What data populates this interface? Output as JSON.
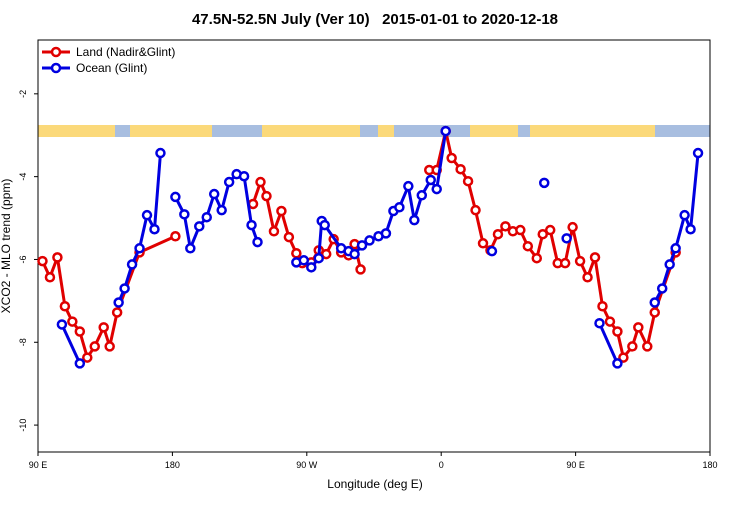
{
  "chart_data": {
    "type": "line",
    "title": "47.5N-52.5N July (Ver 10)   2015-01-01 to 2020-12-18",
    "x_label": "Longitude (deg E)",
    "y_label": "XCO2 - MLO trend (ppm)",
    "xlim": [
      90,
      540
    ],
    "ylim": [
      -10.65,
      -0.7
    ],
    "xticks": [
      {
        "value": 90,
        "label": "90 E"
      },
      180,
      {
        "value": 270,
        "label": "90 W"
      },
      {
        "value": 360,
        "label": "0"
      },
      {
        "value": 450,
        "label": "90 E"
      },
      {
        "value": 540,
        "label": "180"
      }
    ],
    "yticks": [
      -2,
      -4,
      -6,
      -8,
      -10
    ],
    "legend": "topleft",
    "series": [
      {
        "name": "Land (Nadir&Glint)",
        "color": "#e00000",
        "x": [
          93,
          98,
          103,
          108,
          113,
          118,
          123,
          128,
          134,
          138,
          143,
          158,
          182,
          null,
          234,
          239,
          243,
          248,
          253,
          258,
          263,
          267,
          273,
          278,
          283,
          288,
          293,
          298,
          302,
          306,
          null,
          352,
          357,
          363,
          367,
          373,
          378,
          383,
          388,
          393,
          398,
          403,
          408,
          413,
          418,
          424,
          428,
          433,
          438,
          443,
          448,
          453,
          458,
          463,
          468,
          473,
          478,
          482,
          488,
          492,
          498,
          503,
          517
        ],
        "values": [
          -6.04,
          -6.43,
          -5.95,
          -7.13,
          -7.5,
          -7.74,
          -8.37,
          -8.1,
          -7.64,
          -8.1,
          -7.28,
          -5.83,
          -5.44,
          null,
          -4.66,
          -4.13,
          -4.47,
          -5.32,
          -4.83,
          -5.46,
          -5.85,
          -6.09,
          -6.07,
          -5.78,
          -5.87,
          -5.51,
          -5.83,
          -5.9,
          -5.63,
          -6.24,
          null,
          -3.84,
          -3.84,
          -2.9,
          -3.55,
          -3.82,
          -4.11,
          -4.81,
          -5.61,
          -5.78,
          -5.39,
          -5.2,
          -5.32,
          -5.29,
          -5.68,
          -5.97,
          -5.39,
          -5.29,
          -6.09,
          -6.09,
          -5.22,
          -6.04,
          -6.43,
          -5.95,
          -7.13,
          -7.5,
          -7.74,
          -8.37,
          -8.1,
          -7.64,
          -8.1,
          -7.28,
          -5.83
        ]
      },
      {
        "name": "Ocean (Glint)",
        "color": "#0000e0",
        "x": [
          106,
          118,
          null,
          144,
          148,
          153,
          158,
          163,
          168,
          172,
          null,
          182,
          188,
          192,
          198,
          203,
          208,
          213,
          218,
          223,
          228,
          233,
          237,
          null,
          263,
          268,
          273,
          278,
          280,
          282,
          293,
          298,
          302,
          307,
          312,
          318,
          323,
          328,
          332,
          338,
          342,
          347,
          353,
          357,
          363,
          null,
          394,
          null,
          429,
          null,
          444,
          null,
          466,
          478,
          null,
          503,
          508,
          513,
          517,
          523,
          527,
          532
        ],
        "values": [
          -7.57,
          -8.51,
          null,
          -7.04,
          -6.7,
          -6.12,
          -5.73,
          -4.93,
          -5.27,
          -3.43,
          null,
          -4.49,
          -4.91,
          -5.73,
          -5.2,
          -4.98,
          -4.42,
          -4.81,
          -4.13,
          -3.94,
          -3.99,
          -5.17,
          -5.58,
          null,
          -6.07,
          -6.02,
          -6.19,
          -5.97,
          -5.07,
          -5.17,
          -5.73,
          -5.8,
          -5.87,
          -5.66,
          -5.54,
          -5.44,
          -5.37,
          -4.83,
          -4.74,
          -4.23,
          -5.05,
          -4.45,
          -4.08,
          -4.3,
          -2.9,
          null,
          -5.8,
          null,
          -4.15,
          null,
          -5.49,
          null,
          -7.54,
          -8.51,
          null,
          -7.04,
          -6.7,
          -6.12,
          -5.73,
          -4.93,
          -5.27,
          -3.43
        ]
      }
    ]
  }
}
